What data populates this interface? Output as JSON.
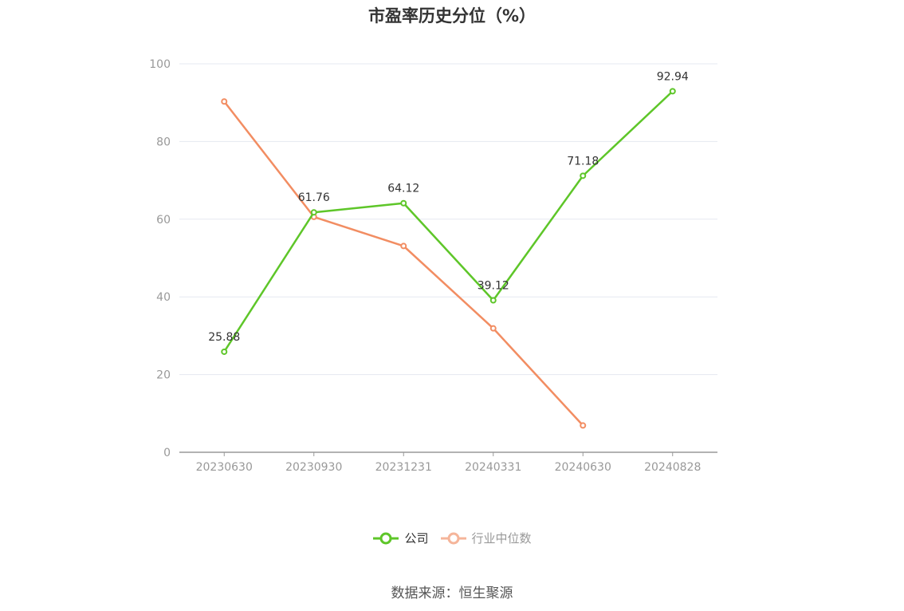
{
  "title": "市盈率历史分位（%）",
  "source": "数据来源：恒生聚源",
  "colors": {
    "company": "#5ec629",
    "industry": "#f28d62",
    "industry_legend": "#f5b59a",
    "grid": "#e5e8f0",
    "axis": "#999999"
  },
  "legend": [
    {
      "name": "公司",
      "icon": "circle-line-icon"
    },
    {
      "name": "行业中位数",
      "icon": "circle-line-icon"
    }
  ],
  "chart_data": {
    "type": "line",
    "title": "市盈率历史分位（%）",
    "xlabel": "",
    "ylabel": "",
    "categories": [
      "20230630",
      "20230930",
      "20231231",
      "20240331",
      "20240630",
      "20240828"
    ],
    "ylim": [
      0,
      100
    ],
    "yticks": [
      0,
      20,
      40,
      60,
      80,
      100
    ],
    "grid": true,
    "legend_position": "bottom",
    "series": [
      {
        "name": "公司",
        "values": [
          25.88,
          61.76,
          64.12,
          39.12,
          71.18,
          92.94
        ],
        "labels": [
          "25.88",
          "61.76",
          "64.12",
          "39.12",
          "71.18",
          "92.94"
        ]
      },
      {
        "name": "行业中位数",
        "values": [
          90.3,
          60.6,
          53.1,
          31.9,
          6.9,
          null
        ]
      }
    ]
  }
}
